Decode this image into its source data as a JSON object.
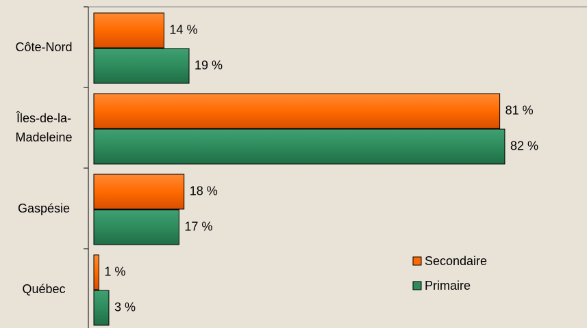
{
  "chart_data": {
    "type": "bar",
    "orientation": "horizontal",
    "categories": [
      "Côte-Nord",
      "Îles-de-la-Madeleine",
      "Gaspésie",
      "Québec"
    ],
    "series": [
      {
        "name": "Secondaire",
        "color": "#ff6a00",
        "values": [
          14,
          81,
          18,
          1
        ],
        "value_labels": [
          "14 %",
          "81 %",
          "18 %",
          "1 %"
        ]
      },
      {
        "name": "Primaire",
        "color": "#2e8b5c",
        "values": [
          19,
          82,
          17,
          3
        ],
        "value_labels": [
          "19 %",
          "82 %",
          "17 %",
          "3 %"
        ]
      }
    ],
    "xlim": [
      0,
      98
    ],
    "legend": "lower right"
  }
}
